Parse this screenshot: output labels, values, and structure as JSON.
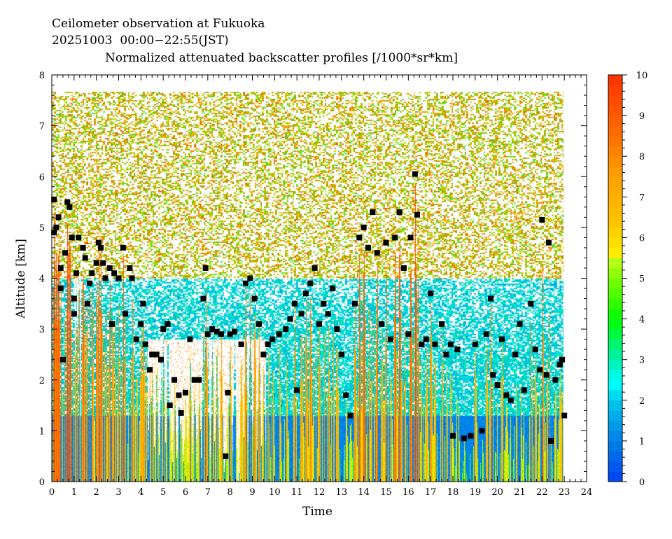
{
  "chart_data": {
    "type": "heatmap",
    "title": "Ceilometer observation at Fukuoka",
    "subtitle": "20251003  00:00−22:55(JST)",
    "colorbar_title": "Normalized attenuated backscatter profiles [/1000*sr*km]",
    "xlabel": "Time",
    "ylabel": "Altitude [km]",
    "xlim": [
      0,
      24
    ],
    "ylim": [
      0,
      8
    ],
    "data_extent": {
      "time": [
        0,
        22.92
      ],
      "altitude": [
        0,
        7.65
      ]
    },
    "xticks": [
      "0",
      "1",
      "2",
      "3",
      "4",
      "5",
      "6",
      "7",
      "8",
      "9",
      "10",
      "11",
      "12",
      "13",
      "14",
      "15",
      "16",
      "17",
      "18",
      "19",
      "20",
      "21",
      "22",
      "23",
      "24"
    ],
    "yticks": [
      "0",
      "1",
      "2",
      "3",
      "4",
      "5",
      "6",
      "7",
      "8"
    ],
    "colorbar": {
      "range": [
        0,
        10
      ],
      "ticks": [
        "0",
        "1",
        "2",
        "3",
        "4",
        "5",
        "6",
        "7",
        "8",
        "9",
        "10"
      ],
      "stops": [
        [
          0,
          "#0040f0"
        ],
        [
          1,
          "#0080e8"
        ],
        [
          2,
          "#00c8e8"
        ],
        [
          2.4,
          "#00ffff"
        ],
        [
          3,
          "#00f0b0"
        ],
        [
          4,
          "#00ff00"
        ],
        [
          5,
          "#80ff00"
        ],
        [
          5.5,
          "#c0ff20"
        ],
        [
          5.6,
          "#ffee00"
        ],
        [
          6.5,
          "#ffc000"
        ],
        [
          7.5,
          "#ffa000"
        ],
        [
          8.5,
          "#ff7000"
        ],
        [
          10,
          "#ff3000"
        ]
      ]
    },
    "cloud_base_series": {
      "name": "Cloud base height",
      "color": "#000000",
      "points": [
        [
          0.1,
          4.9
        ],
        [
          0.1,
          5.55
        ],
        [
          0.2,
          5.0
        ],
        [
          0.3,
          5.2
        ],
        [
          0.4,
          4.2
        ],
        [
          0.4,
          3.8
        ],
        [
          0.5,
          2.4
        ],
        [
          0.6,
          4.5
        ],
        [
          0.7,
          5.5
        ],
        [
          0.8,
          5.4
        ],
        [
          0.9,
          4.8
        ],
        [
          1.0,
          3.3
        ],
        [
          1.0,
          3.6
        ],
        [
          1.1,
          4.1
        ],
        [
          1.2,
          4.8
        ],
        [
          1.4,
          4.6
        ],
        [
          1.5,
          4.4
        ],
        [
          1.6,
          3.5
        ],
        [
          1.7,
          3.9
        ],
        [
          1.8,
          4.1
        ],
        [
          2.0,
          4.3
        ],
        [
          2.1,
          4.7
        ],
        [
          2.2,
          4.6
        ],
        [
          2.3,
          4.3
        ],
        [
          2.4,
          4.0
        ],
        [
          2.6,
          4.2
        ],
        [
          2.7,
          3.1
        ],
        [
          2.8,
          4.1
        ],
        [
          3.0,
          4.0
        ],
        [
          3.2,
          4.6
        ],
        [
          3.3,
          3.3
        ],
        [
          3.5,
          4.2
        ],
        [
          3.6,
          4.0
        ],
        [
          3.8,
          2.8
        ],
        [
          4.0,
          3.1
        ],
        [
          4.1,
          3.5
        ],
        [
          4.2,
          2.7
        ],
        [
          4.4,
          2.2
        ],
        [
          4.5,
          2.5
        ],
        [
          4.7,
          2.5
        ],
        [
          4.9,
          2.4
        ],
        [
          5.0,
          3.0
        ],
        [
          5.2,
          3.1
        ],
        [
          5.3,
          1.5
        ],
        [
          5.5,
          2.0
        ],
        [
          5.7,
          1.7
        ],
        [
          5.8,
          1.35
        ],
        [
          6.0,
          1.75
        ],
        [
          6.2,
          2.8
        ],
        [
          6.4,
          2.0
        ],
        [
          6.6,
          2.0
        ],
        [
          6.8,
          3.6
        ],
        [
          6.9,
          4.2
        ],
        [
          7.0,
          2.9
        ],
        [
          7.2,
          3.0
        ],
        [
          7.4,
          2.95
        ],
        [
          7.6,
          2.9
        ],
        [
          7.8,
          0.5
        ],
        [
          7.9,
          1.75
        ],
        [
          8.0,
          2.9
        ],
        [
          8.2,
          2.95
        ],
        [
          8.5,
          2.7
        ],
        [
          8.7,
          3.9
        ],
        [
          8.9,
          4.0
        ],
        [
          9.1,
          3.6
        ],
        [
          9.3,
          3.1
        ],
        [
          9.5,
          2.5
        ],
        [
          9.7,
          2.7
        ],
        [
          9.9,
          2.8
        ],
        [
          10.2,
          2.9
        ],
        [
          10.5,
          3.0
        ],
        [
          10.7,
          3.2
        ],
        [
          10.9,
          3.5
        ],
        [
          11.0,
          1.8
        ],
        [
          11.2,
          3.3
        ],
        [
          11.4,
          3.7
        ],
        [
          11.6,
          3.9
        ],
        [
          11.8,
          4.2
        ],
        [
          12.0,
          3.1
        ],
        [
          12.2,
          3.5
        ],
        [
          12.4,
          3.3
        ],
        [
          12.6,
          3.8
        ],
        [
          12.8,
          3.0
        ],
        [
          13.0,
          2.5
        ],
        [
          13.2,
          1.7
        ],
        [
          13.4,
          1.3
        ],
        [
          13.6,
          3.5
        ],
        [
          13.8,
          4.8
        ],
        [
          14.0,
          5.0
        ],
        [
          14.2,
          4.6
        ],
        [
          14.4,
          5.3
        ],
        [
          14.6,
          4.5
        ],
        [
          14.8,
          3.1
        ],
        [
          15.0,
          4.7
        ],
        [
          15.2,
          2.8
        ],
        [
          15.4,
          4.8
        ],
        [
          15.6,
          5.3
        ],
        [
          15.8,
          4.2
        ],
        [
          16.0,
          2.9
        ],
        [
          16.1,
          4.8
        ],
        [
          16.3,
          6.05
        ],
        [
          16.4,
          5.25
        ],
        [
          16.6,
          2.7
        ],
        [
          16.8,
          2.8
        ],
        [
          17.0,
          3.7
        ],
        [
          17.2,
          2.7
        ],
        [
          17.5,
          3.1
        ],
        [
          17.7,
          2.5
        ],
        [
          17.9,
          2.7
        ],
        [
          18.0,
          0.9
        ],
        [
          18.2,
          2.6
        ],
        [
          18.5,
          0.85
        ],
        [
          18.8,
          0.9
        ],
        [
          19.0,
          2.7
        ],
        [
          19.3,
          1.0
        ],
        [
          19.5,
          2.9
        ],
        [
          19.7,
          3.6
        ],
        [
          19.8,
          2.1
        ],
        [
          20.0,
          1.9
        ],
        [
          20.2,
          2.8
        ],
        [
          20.4,
          1.7
        ],
        [
          20.6,
          1.6
        ],
        [
          20.8,
          2.5
        ],
        [
          21.0,
          3.1
        ],
        [
          21.2,
          1.8
        ],
        [
          21.5,
          3.5
        ],
        [
          21.7,
          2.6
        ],
        [
          21.9,
          2.2
        ],
        [
          22.0,
          5.15
        ],
        [
          22.2,
          2.1
        ],
        [
          22.3,
          4.7
        ],
        [
          22.4,
          0.8
        ],
        [
          22.6,
          2.0
        ],
        [
          22.8,
          2.3
        ],
        [
          22.9,
          2.4
        ],
        [
          23.0,
          1.3
        ]
      ]
    }
  }
}
